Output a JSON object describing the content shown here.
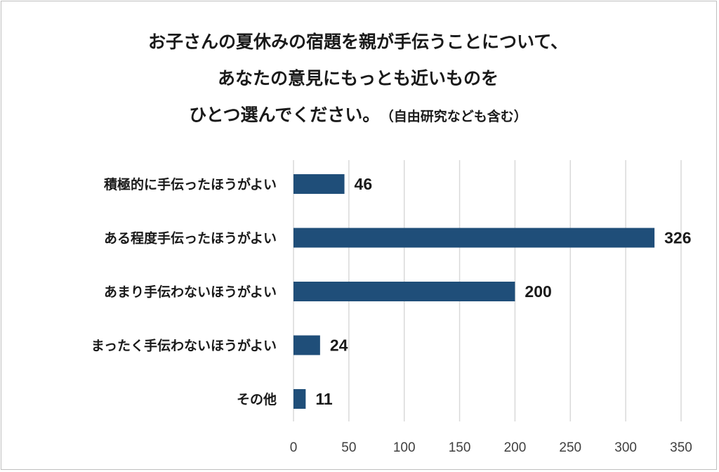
{
  "chart_data": {
    "type": "bar",
    "orientation": "horizontal",
    "title": {
      "line1": "お子さんの夏休みの宿題を親が手伝うことについて、",
      "line2": "あなたの意見にもっとも近いものを",
      "line3": "ひとつ選んでください。",
      "note": "（自由研究なども含む）"
    },
    "categories": [
      "積極的に手伝ったほうがよい",
      "ある程度手伝ったほうがよい",
      "あまり手伝わないほうがよい",
      "まったく手伝わないほうがよい",
      "その他"
    ],
    "values": [
      46,
      326,
      200,
      24,
      11
    ],
    "xlim": [
      0,
      350
    ],
    "xticks": [
      0,
      50,
      100,
      150,
      200,
      250,
      300,
      350
    ],
    "grid": "vertical",
    "bar_color": "#1f4e79",
    "grid_color": "#d9d9d9"
  }
}
